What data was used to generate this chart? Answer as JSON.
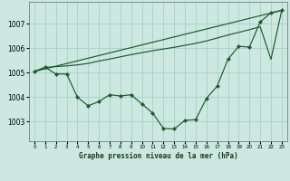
{
  "background_color": "#cce8e0",
  "grid_color": "#aad4cc",
  "line_color": "#1a5c2a",
  "title": "Graphe pression niveau de la mer (hPa)",
  "xlim": [
    -0.5,
    23.5
  ],
  "ylim": [
    1002.2,
    1007.9
  ],
  "yticks": [
    1003,
    1004,
    1005,
    1006,
    1007
  ],
  "xticks": [
    0,
    1,
    2,
    3,
    4,
    5,
    6,
    7,
    8,
    9,
    10,
    11,
    12,
    13,
    14,
    15,
    16,
    17,
    18,
    19,
    20,
    21,
    22,
    23
  ],
  "line1_x": [
    0,
    23
  ],
  "line1_y": [
    1005.05,
    1007.55
  ],
  "line2_x": [
    0,
    1,
    2,
    3,
    4,
    5,
    6,
    7,
    8,
    9,
    10,
    11,
    12,
    13,
    14,
    15,
    16,
    17,
    18,
    19,
    20,
    21,
    22,
    23
  ],
  "line2_y": [
    1005.05,
    1005.22,
    1005.25,
    1005.28,
    1005.32,
    1005.38,
    1005.48,
    1005.56,
    1005.65,
    1005.74,
    1005.82,
    1005.9,
    1005.97,
    1006.04,
    1006.12,
    1006.2,
    1006.3,
    1006.42,
    1006.54,
    1006.65,
    1006.76,
    1006.88,
    1005.55,
    1007.55
  ],
  "line3_x": [
    0,
    1,
    2,
    3,
    4,
    5,
    6,
    7,
    8,
    9,
    10,
    11,
    12,
    13,
    14,
    15,
    16,
    17,
    18,
    19,
    20,
    21,
    22,
    23
  ],
  "line3_y": [
    1005.05,
    1005.22,
    1004.95,
    1004.95,
    1004.0,
    1003.65,
    1003.82,
    1004.1,
    1004.05,
    1004.1,
    1003.72,
    1003.35,
    1002.72,
    1002.7,
    1003.05,
    1003.08,
    1003.95,
    1004.45,
    1005.55,
    1006.08,
    1006.05,
    1007.08,
    1007.45,
    1007.55
  ]
}
